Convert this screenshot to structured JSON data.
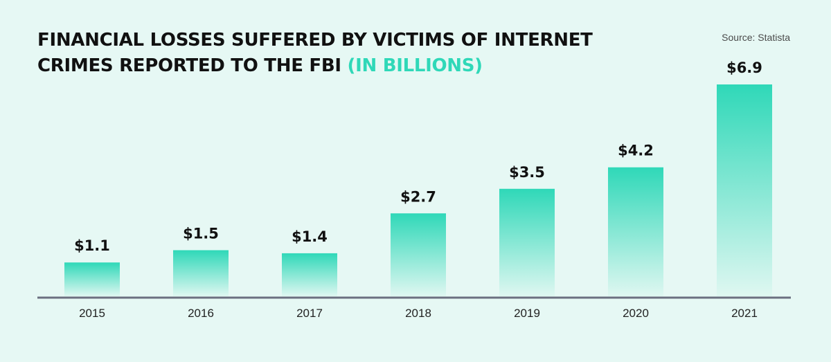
{
  "header": {
    "title_main": "FINANCIAL LOSSES SUFFERED BY VICTIMS OF INTERNET CRIMES REPORTED TO THE FBI",
    "title_accent": "(IN BILLIONS)",
    "source": "Source: Statista"
  },
  "colors": {
    "background": "#e6f8f4",
    "bar_top": "#2fd8b8",
    "bar_bottom": "#dff7f1",
    "baseline": "#6b6f80",
    "accent": "#2fd8b8"
  },
  "chart_data": {
    "type": "bar",
    "title": "FINANCIAL LOSSES SUFFERED BY VICTIMS OF INTERNET CRIMES REPORTED TO THE FBI (IN BILLIONS)",
    "categories": [
      "2015",
      "2016",
      "2017",
      "2018",
      "2019",
      "2020",
      "2021"
    ],
    "values": [
      1.1,
      1.5,
      1.4,
      2.7,
      3.5,
      4.2,
      6.9
    ],
    "labels": [
      "$1.1",
      "$1.5",
      "$1.4",
      "$2.7",
      "$3.5",
      "$4.2",
      "$6.9"
    ],
    "xlabel": "",
    "ylabel": "",
    "ylim": [
      0,
      6.9
    ],
    "grid": false,
    "legend": "none"
  }
}
